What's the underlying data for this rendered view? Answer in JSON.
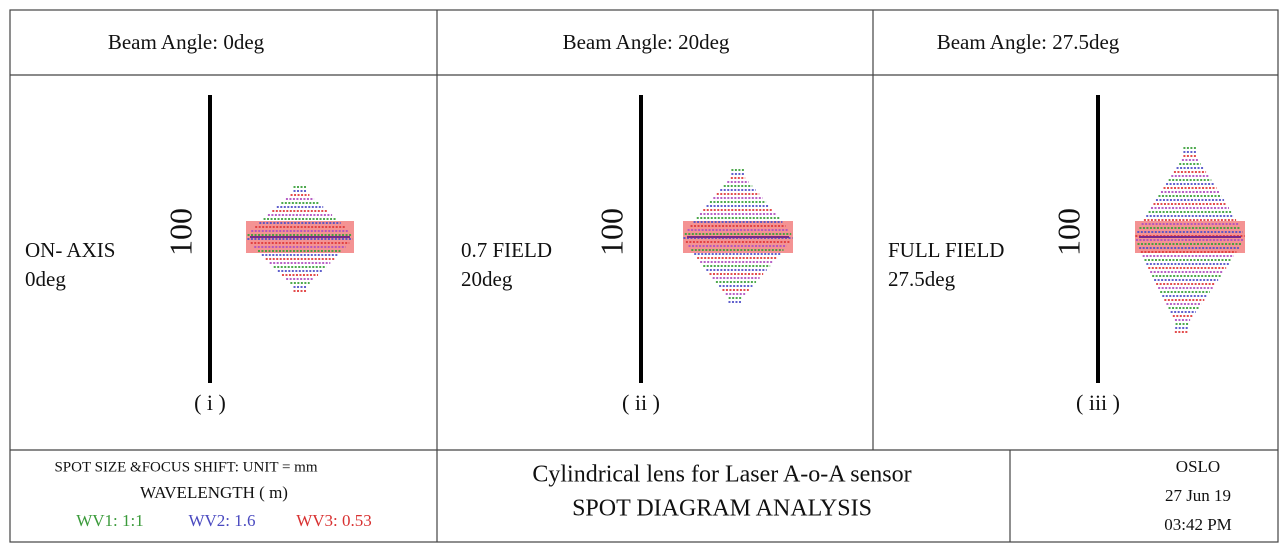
{
  "panels": [
    {
      "header": "Beam Angle: 0deg",
      "label_1": "ON- AXIS",
      "label_2": "0deg",
      "scale": "100",
      "index": "( i )"
    },
    {
      "header": "Beam Angle: 20deg",
      "label_1": "0.7 FIELD",
      "label_2": "20deg",
      "scale": "100",
      "index": "( ii )"
    },
    {
      "header": "Beam Angle: 27.5deg",
      "label_1": "FULL FIELD",
      "label_2": "27.5deg",
      "scale": "100",
      "index": "( iii )"
    }
  ],
  "footer": {
    "left": {
      "line_1": "SPOT SIZE &FOCUS SHIFT: UNIT = mm",
      "line_2": "WAVELENGTH ( m)",
      "wv1": "WV1: 1:1",
      "wv2": "WV2: 1.6",
      "wv3": "WV3: 0.53"
    },
    "center": {
      "line_1": "Cylindrical lens for Laser A-o-A sensor",
      "line_2": "SPOT DIAGRAM ANALYSIS"
    },
    "right": {
      "line_1": "OSLO",
      "line_2": "27 Jun 19",
      "line_3": "03:42 PM"
    }
  }
}
